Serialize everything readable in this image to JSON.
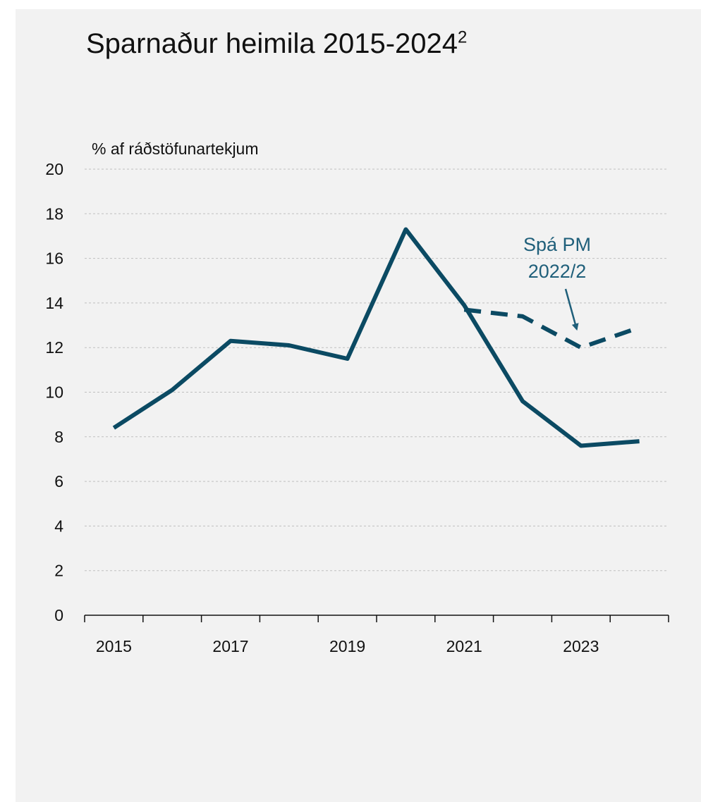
{
  "chart_data": {
    "type": "line",
    "title": "Sparnaður heimila 2015-2024",
    "title_superscript": "2",
    "ylabel": "% af ráðstöfunartekjum",
    "xlabel": "",
    "ylim": [
      0,
      20
    ],
    "y_ticks": [
      "0",
      "2",
      "4",
      "6",
      "8",
      "10",
      "12",
      "14",
      "16",
      "18",
      "20"
    ],
    "x": [
      2015,
      2016,
      2017,
      2018,
      2019,
      2020,
      2021,
      2022,
      2023,
      2024
    ],
    "x_tick_labels": [
      "2015",
      "2017",
      "2019",
      "2021",
      "2023"
    ],
    "grid": true,
    "series": [
      {
        "x": [
          2015,
          2016,
          2017,
          2018,
          2019,
          2020,
          2021,
          2022,
          2023,
          2024
        ],
        "values": [
          8.4,
          10.1,
          12.3,
          12.1,
          11.5,
          17.3,
          13.9,
          9.6,
          7.6,
          7.8
        ],
        "style": "solid",
        "color": "#0b4a63"
      },
      {
        "name": "Spá PM 2022/2",
        "x": [
          2021,
          2022,
          2023,
          2024
        ],
        "values": [
          13.7,
          13.4,
          12.0,
          12.9
        ],
        "style": "dashed",
        "color": "#0b4a63"
      }
    ],
    "annotations": [
      {
        "text_lines": [
          "Spá PM",
          "2022/2"
        ],
        "points_to": {
          "x": 2023,
          "y": 12.0
        }
      }
    ]
  },
  "colors": {
    "background": "#f2f2f2",
    "series": "#0b4a63",
    "annotation": "#1f5f7a",
    "grid": "#bfbfbf",
    "axis": "#111111"
  }
}
